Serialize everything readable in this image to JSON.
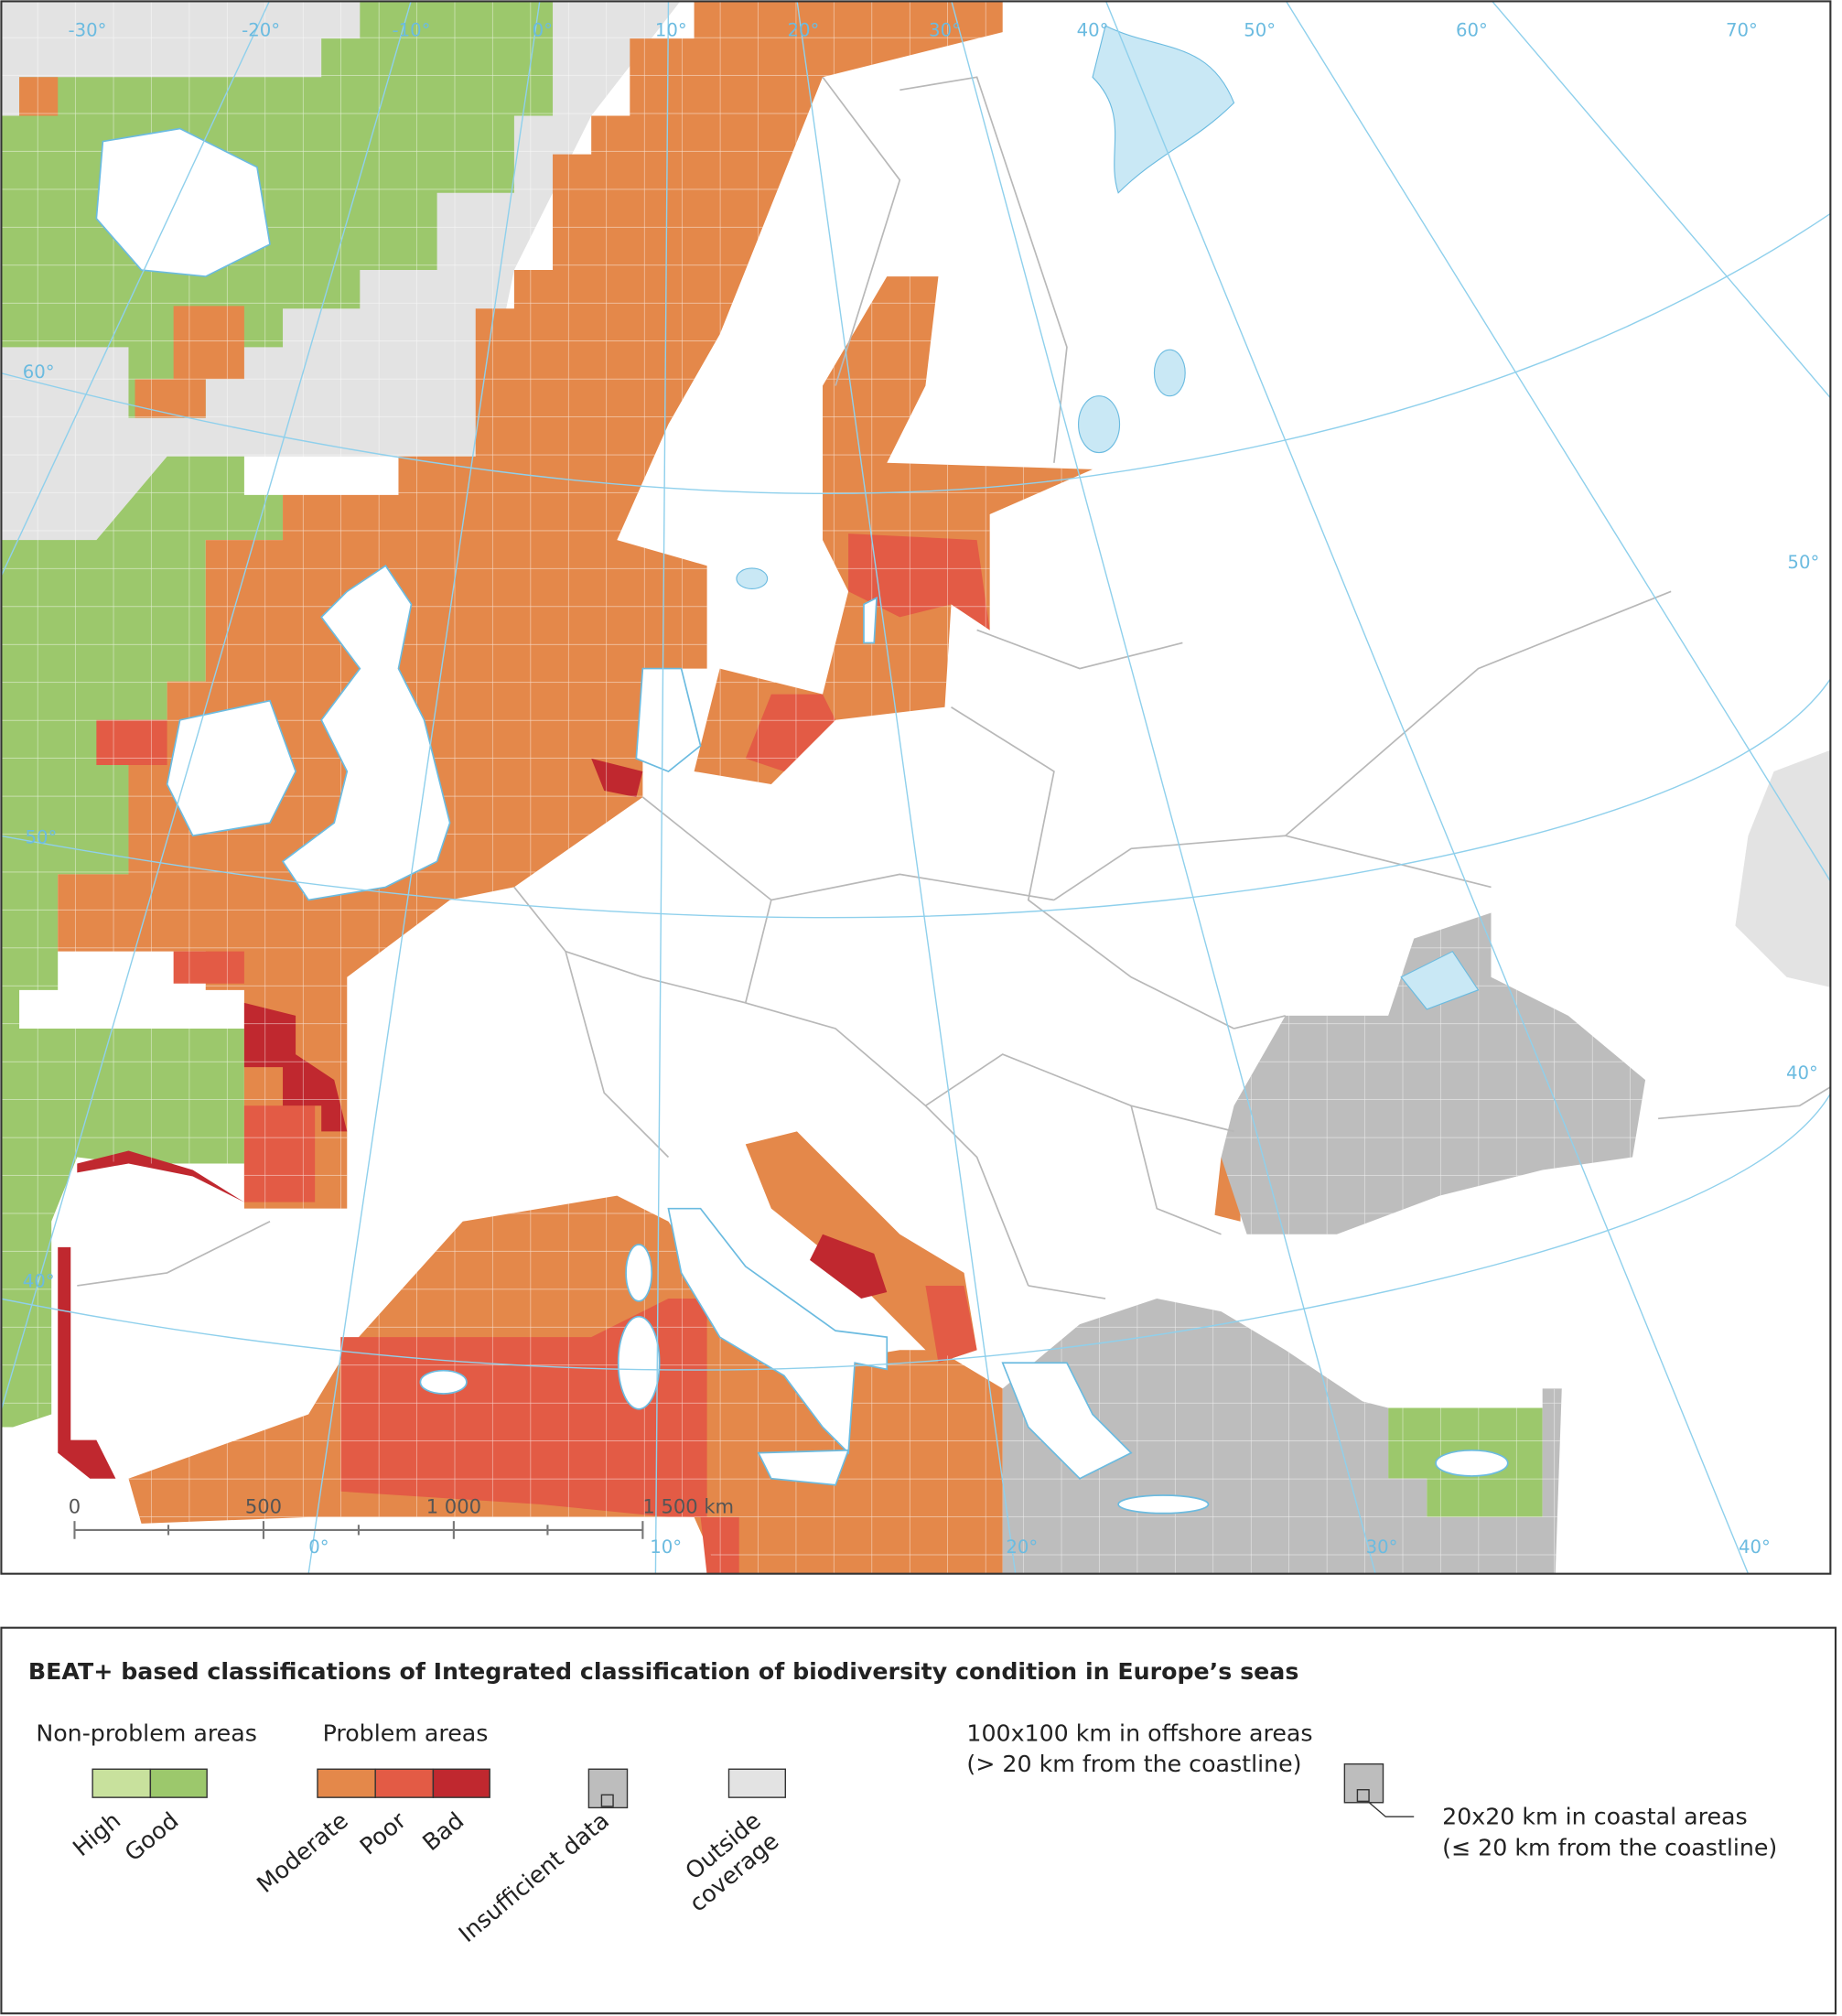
{
  "map": {
    "longitude_labels_top": [
      "-30°",
      "-20°",
      "-10°",
      "0°",
      "10°",
      "20°",
      "30°",
      "40°",
      "50°",
      "60°",
      "70°"
    ],
    "latitude_labels_left": [
      "60°",
      "50°",
      "40°"
    ],
    "latitude_labels_right": [
      "50°",
      "40°"
    ],
    "longitude_labels_bottom": [
      "0°",
      "10°",
      "20°",
      "30°",
      "40°"
    ],
    "scale_bar": [
      "0",
      "500",
      "1 000",
      "1 500 km"
    ]
  },
  "legend": {
    "title": "BEAT+ based classifications of Integrated classification of biodiversity condition in Europe’s seas",
    "non_problem_heading": "Non-problem areas",
    "problem_heading": "Problem areas",
    "classes": [
      "High",
      "Good",
      "Moderate",
      "Poor",
      "Bad",
      "Insufficient data"
    ],
    "outside_coverage": [
      "Outside",
      "coverage"
    ],
    "offshore": [
      "100x100 km in offshore areas",
      "(> 20 km from the coastline)"
    ],
    "coastal": [
      "20x20 km in coastal areas",
      "(≤ 20 km from the coastline)"
    ]
  }
}
